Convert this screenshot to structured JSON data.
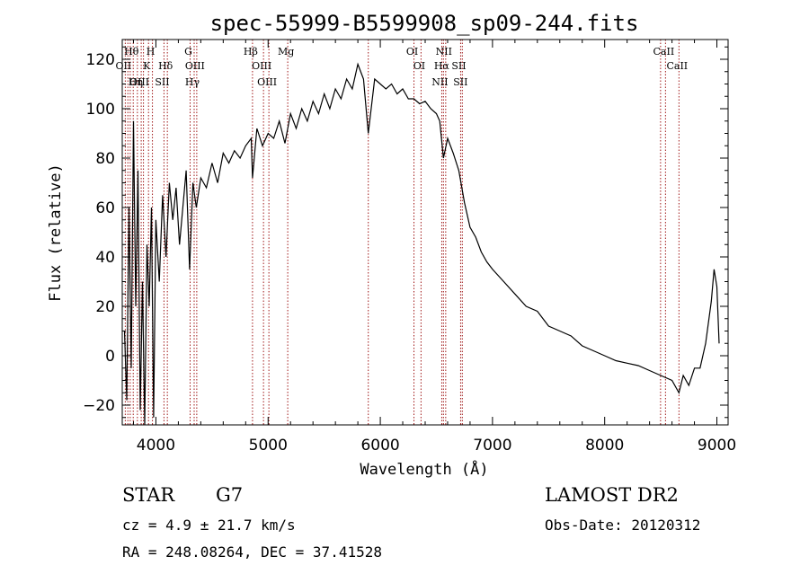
{
  "chart_data": {
    "type": "line",
    "title": "spec-55999-B5599908_sp09-244.fits",
    "xlabel": "Wavelength (Å)",
    "ylabel": "Flux (relative)",
    "xlim": [
      3700,
      9100
    ],
    "ylim": [
      -28,
      128
    ],
    "xticks": [
      4000,
      5000,
      6000,
      7000,
      8000,
      9000
    ],
    "yticks": [
      -20,
      0,
      20,
      40,
      60,
      80,
      100,
      120
    ],
    "grid": false,
    "series": [
      {
        "color": "#000000",
        "x": [
          3720,
          3740,
          3760,
          3780,
          3800,
          3820,
          3840,
          3860,
          3880,
          3900,
          3920,
          3940,
          3960,
          3980,
          4000,
          4030,
          4060,
          4090,
          4120,
          4150,
          4180,
          4210,
          4240,
          4270,
          4300,
          4330,
          4360,
          4400,
          4450,
          4500,
          4550,
          4600,
          4650,
          4700,
          4750,
          4800,
          4850,
          4861,
          4900,
          4950,
          5000,
          5050,
          5100,
          5150,
          5200,
          5250,
          5300,
          5350,
          5400,
          5450,
          5500,
          5550,
          5600,
          5650,
          5700,
          5750,
          5800,
          5850,
          5893,
          5950,
          6000,
          6050,
          6100,
          6150,
          6200,
          6250,
          6300,
          6350,
          6400,
          6450,
          6500,
          6530,
          6563,
          6600,
          6650,
          6700,
          6750,
          6800,
          6850,
          6900,
          6950,
          7000,
          7100,
          7200,
          7300,
          7400,
          7500,
          7600,
          7700,
          7800,
          7900,
          8000,
          8100,
          8200,
          8300,
          8400,
          8500,
          8600,
          8662,
          8700,
          8750,
          8800,
          8850,
          8900,
          8950,
          8975,
          9000,
          9020
        ],
        "y": [
          10,
          -18,
          60,
          -5,
          95,
          20,
          75,
          -22,
          30,
          -28,
          45,
          20,
          60,
          -25,
          55,
          30,
          65,
          40,
          70,
          55,
          68,
          45,
          60,
          75,
          35,
          70,
          60,
          72,
          68,
          78,
          70,
          82,
          78,
          83,
          80,
          85,
          88,
          72,
          92,
          85,
          90,
          88,
          95,
          86,
          98,
          92,
          100,
          95,
          103,
          98,
          106,
          100,
          108,
          104,
          112,
          108,
          118,
          112,
          90,
          112,
          110,
          108,
          110,
          106,
          108,
          104,
          104,
          102,
          103,
          100,
          98,
          95,
          80,
          88,
          82,
          75,
          62,
          52,
          48,
          42,
          38,
          35,
          30,
          25,
          20,
          18,
          12,
          10,
          8,
          4,
          2,
          0,
          -2,
          -3,
          -4,
          -6,
          -8,
          -10,
          -15,
          -8,
          -12,
          -5,
          -5,
          5,
          22,
          35,
          28,
          5
        ]
      }
    ],
    "line_markers": [
      {
        "label": "Hθ",
        "wavelength": 3798,
        "row": 1
      },
      {
        "label": "OII",
        "wavelength": 3727,
        "row": 2
      },
      {
        "label": "OIII",
        "wavelength": 3869,
        "row": 3
      },
      {
        "label": "Hη",
        "wavelength": 3835,
        "row": 3
      },
      {
        "label": "H",
        "wavelength": 3969,
        "row": 1
      },
      {
        "label": "K",
        "wavelength": 3934,
        "row": 2
      },
      {
        "label": "Hδ",
        "wavelength": 4102,
        "row": 2
      },
      {
        "label": "SII",
        "wavelength": 4072,
        "row": 3
      },
      {
        "label": "G",
        "wavelength": 4305,
        "row": 1
      },
      {
        "label": "OIII",
        "wavelength": 4364,
        "row": 2
      },
      {
        "label": "Hγ",
        "wavelength": 4341,
        "row": 3
      },
      {
        "label": "Hβ",
        "wavelength": 4861,
        "row": 1
      },
      {
        "label": "OIII",
        "wavelength": 4959,
        "row": 2
      },
      {
        "label": "OIII",
        "wavelength": 5007,
        "row": 3
      },
      {
        "label": "Mg",
        "wavelength": 5175,
        "row": 1
      },
      {
        "label": "OI",
        "wavelength": 6300,
        "row": 1
      },
      {
        "label": "OI",
        "wavelength": 6363,
        "row": 2
      },
      {
        "label": "NII",
        "wavelength": 6583,
        "row": 1
      },
      {
        "label": "Hα",
        "wavelength": 6563,
        "row": 2
      },
      {
        "label": "SII",
        "wavelength": 6716,
        "row": 2
      },
      {
        "label": "NII",
        "wavelength": 6548,
        "row": 3
      },
      {
        "label": "SII",
        "wavelength": 6731,
        "row": 3
      },
      {
        "label": "CaII",
        "wavelength": 8542,
        "row": 1
      },
      {
        "label": "CaII",
        "wavelength": 8662,
        "row": 2
      }
    ],
    "extra_lines": [
      3750,
      3771,
      3889,
      5893,
      8498
    ]
  },
  "info": {
    "object_class": "STAR",
    "subclass": "G7",
    "survey": "LAMOST DR2",
    "cz": "cz = 4.9 ± 21.7 km/s",
    "obs_date": "Obs-Date: 20120312",
    "radec": "RA = 248.08264, DEC =  37.41528"
  }
}
